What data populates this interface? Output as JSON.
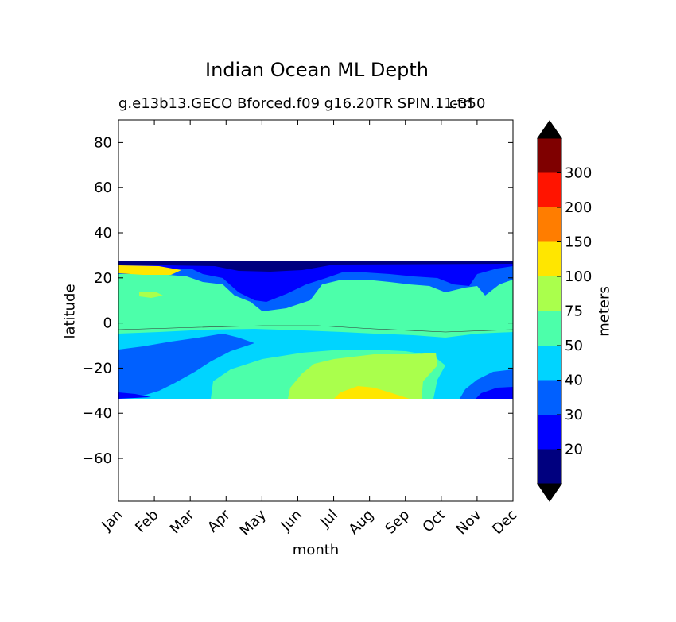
{
  "chart_data": {
    "type": "heatmap",
    "title": "Indian Ocean ML Depth",
    "subtitle_left": "g.e13b13.GECO Bforced.f09 g16.20TR SPIN.11-350",
    "subtitle_right": "ctrl",
    "xlabel": "month",
    "ylabel": "latitude",
    "colorbar_label": "meters",
    "x_categories": [
      "Jan",
      "Feb",
      "Mar",
      "Apr",
      "May",
      "Jun",
      "Jul",
      "Aug",
      "Sep",
      "Oct",
      "Nov",
      "Dec"
    ],
    "y_ticks": [
      80,
      60,
      40,
      20,
      0,
      -20,
      -40,
      -60
    ],
    "y_tick_labels": [
      "80",
      "60",
      "40",
      "20",
      "0",
      "−20",
      "−40",
      "−60"
    ],
    "ylim": [
      -79,
      90
    ],
    "data_lat_range": [
      -34,
      27
    ],
    "contour_levels": [
      20,
      30,
      40,
      50,
      75,
      100,
      150,
      200,
      300
    ],
    "colorbar_tick_labels": [
      "20",
      "30",
      "40",
      "50",
      "75",
      "100",
      "150",
      "200",
      "300"
    ],
    "colorbar_colors": [
      "#00007f",
      "#0000ff",
      "#0060ff",
      "#00d4ff",
      "#4cffaa",
      "#aaff4c",
      "#ffe600",
      "#ff7d00",
      "#ff1400",
      "#7f0000"
    ],
    "extend": "both",
    "regions": [
      {
        "band": "20-30",
        "lat": [
          22,
          27
        ],
        "months": "Apr-Jul"
      },
      {
        "band": "30-40",
        "lat": [
          17,
          27
        ],
        "months": "Feb-Dec"
      },
      {
        "band": "100-150",
        "lat": [
          23,
          27
        ],
        "months": "Jan-Feb"
      },
      {
        "band": "50-75",
        "lat": [
          -25,
          20
        ],
        "months": "Jan-Dec"
      },
      {
        "band": "40-50",
        "lat": [
          -34,
          -5
        ],
        "months": "Jan-Dec"
      },
      {
        "band": "75-100",
        "lat": [
          -34,
          -12
        ],
        "months": "Jul-Sep"
      },
      {
        "band": "100-150",
        "lat": [
          -34,
          -29
        ],
        "months": "Aug"
      },
      {
        "band": "30-40",
        "lat": [
          -34,
          -10
        ],
        "months": "Jan-Mar, Nov-Dec"
      },
      {
        "band": "20-30",
        "lat": [
          -34,
          -29
        ],
        "months": "Dec"
      }
    ]
  }
}
